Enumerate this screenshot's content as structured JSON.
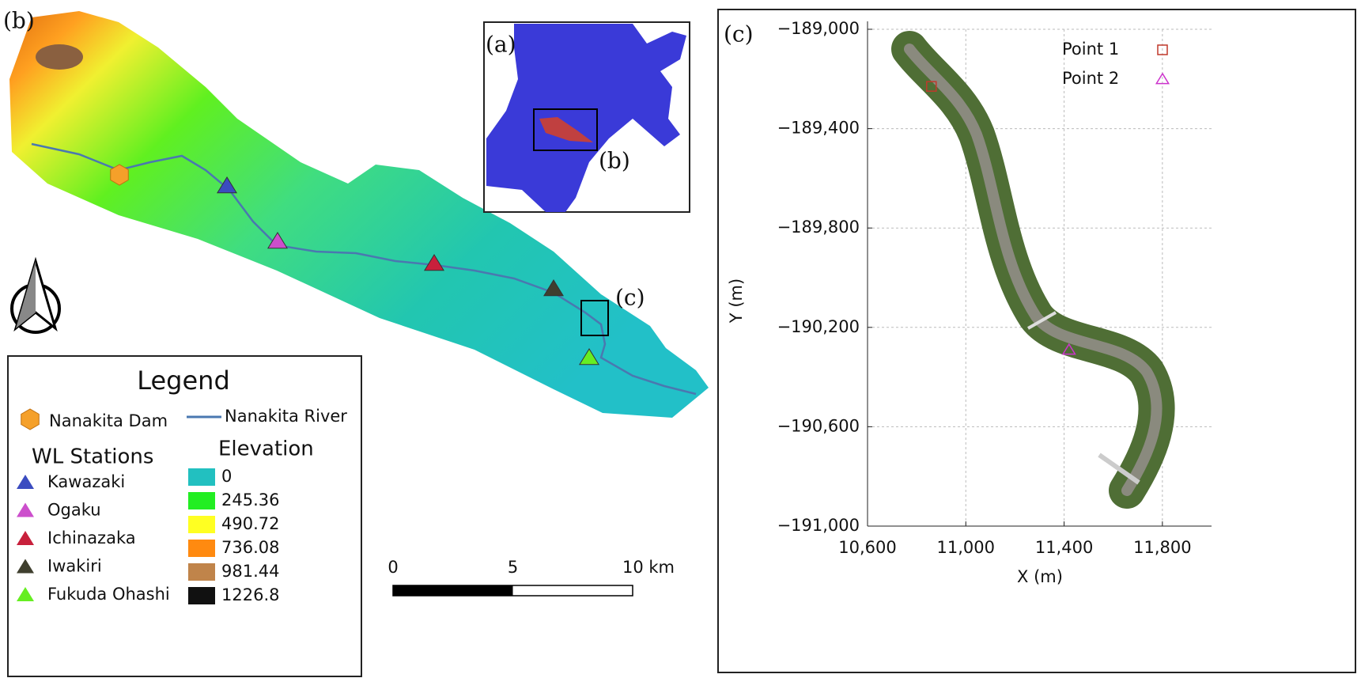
{
  "panel_b": {
    "label": "(b)",
    "inset_box_label": "(c)",
    "legend": {
      "title": "Legend",
      "dam": "Nanakita Dam",
      "dam_color": "#f5a02a",
      "river": "Nanakita River",
      "river_color": "#4a78b0",
      "stations_title": "WL Stations",
      "stations": [
        {
          "name": "Kawazaki",
          "color": "#3b4cc0"
        },
        {
          "name": "Ogaku",
          "color": "#cc4fcc"
        },
        {
          "name": "Ichinazaka",
          "color": "#c8203c"
        },
        {
          "name": "Iwakiri",
          "color": "#3f3f2e"
        },
        {
          "name": "Fukuda Ohashi",
          "color": "#66ee22"
        }
      ],
      "elevation_title": "Elevation",
      "elevation": [
        {
          "value": 0,
          "color": "#22c0c0"
        },
        {
          "value": 245.36,
          "color": "#22ee22"
        },
        {
          "value": 490.72,
          "color": "#ffff22"
        },
        {
          "value": 736.08,
          "color": "#ff8a10"
        },
        {
          "value": 981.44,
          "color": "#c0844a"
        },
        {
          "value": 1226.8,
          "color": "#111111"
        }
      ]
    },
    "scale_bar": {
      "ticks": [
        0,
        5,
        {
          "value": 10,
          "label": "10 km"
        }
      ]
    }
  },
  "panel_a": {
    "label": "(a)",
    "box_label": "(b)"
  },
  "panel_c": {
    "label": "(c)",
    "x_label": "X (m)",
    "y_label": "Y (m)",
    "xlim": [
      10600,
      12000
    ],
    "xticks": [
      {
        "value": 10600,
        "label": "10,600"
      },
      {
        "value": 11000,
        "label": "11,000"
      },
      {
        "value": 11400,
        "label": "11,400"
      },
      {
        "value": 11800,
        "label": "11,800"
      }
    ],
    "ylim": [
      -191000,
      -189000
    ],
    "yticks": [
      {
        "value": -189000,
        "label": "−189,000"
      },
      {
        "value": -189400,
        "label": "−189,400"
      },
      {
        "value": -189800,
        "label": "−189,800"
      },
      {
        "value": -190200,
        "label": "−190,200"
      },
      {
        "value": -190600,
        "label": "−190,600"
      },
      {
        "value": -191000,
        "label": "−191,000"
      }
    ],
    "grid": true,
    "series": [
      {
        "name": "Point 1",
        "color": "#c0392b",
        "marker": "square",
        "x": [
          10860
        ],
        "y": [
          -189230
        ]
      },
      {
        "name": "Point 2",
        "color": "#cc33cc",
        "marker": "triangle",
        "x": [
          11420
        ],
        "y": [
          -190290
        ]
      }
    ]
  }
}
